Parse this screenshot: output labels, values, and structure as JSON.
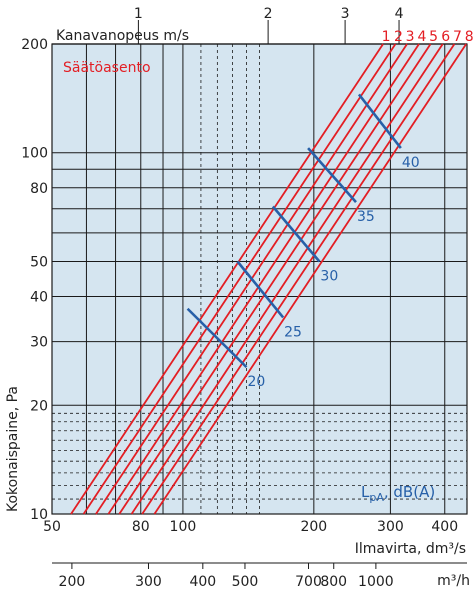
{
  "chart_data": {
    "type": "line",
    "xscale": "log",
    "yscale": "log",
    "xlim": [
      50,
      450
    ],
    "ylim": [
      10,
      200
    ],
    "xlabel": "Ilmavirta, dm³/s",
    "ylabel": "Kokonaispaine, Pa",
    "top_axis_label": "Kanavanopeus m/s",
    "bottom_axis_unit": "m³/h",
    "legend_title": "Säätöasento",
    "noise_label": "L",
    "noise_label_sub": "pA",
    "noise_label_rest": ", dB(A)",
    "x_ticks": [
      50,
      80,
      100,
      200,
      300,
      400
    ],
    "y_ticks": [
      10,
      20,
      30,
      40,
      50,
      80,
      100,
      200
    ],
    "top_ticks": [
      {
        "label": "1",
        "flow": 79
      },
      {
        "label": "2",
        "flow": 157
      },
      {
        "label": "3",
        "flow": 236
      },
      {
        "label": "4",
        "flow": 314
      }
    ],
    "bottom_ticks": [
      {
        "label": "200",
        "m3h": 200
      },
      {
        "label": "300",
        "m3h": 300
      },
      {
        "label": "400",
        "m3h": 400
      },
      {
        "label": "500",
        "m3h": 500
      },
      {
        "label": "700",
        "m3h": 700
      },
      {
        "label": "800",
        "m3h": 800
      },
      {
        "label": "1000",
        "m3h": 1000
      }
    ],
    "series": [
      {
        "name": "1",
        "points": [
          [
            55.3,
            10
          ],
          [
            288.6,
            200
          ]
        ]
      },
      {
        "name": "2",
        "points": [
          [
            59.1,
            10
          ],
          [
            308.1,
            200
          ]
        ]
      },
      {
        "name": "3",
        "points": [
          [
            63.1,
            10
          ],
          [
            327.6,
            200
          ]
        ]
      },
      {
        "name": "4",
        "points": [
          [
            67.4,
            10
          ],
          [
            349.0,
            200
          ]
        ]
      },
      {
        "name": "5",
        "points": [
          [
            71.4,
            10
          ],
          [
            371.0,
            200
          ]
        ]
      },
      {
        "name": "6",
        "points": [
          [
            76.2,
            10
          ],
          [
            395.7,
            200
          ]
        ]
      },
      {
        "name": "7",
        "points": [
          [
            80.6,
            10
          ],
          [
            421.0,
            200
          ]
        ]
      },
      {
        "name": "8",
        "points": [
          [
            86.0,
            10
          ],
          [
            448.0,
            200
          ]
        ]
      }
    ],
    "noise_levels": [
      {
        "label": "20",
        "from": [
          102.5,
          37
        ],
        "to": [
          140.0,
          25.5
        ]
      },
      {
        "label": "25",
        "from": [
          133.5,
          50
        ],
        "to": [
          170.0,
          35
        ]
      },
      {
        "label": "30",
        "from": [
          161.0,
          71
        ],
        "to": [
          206.0,
          50
        ]
      },
      {
        "label": "35",
        "from": [
          194.0,
          103
        ],
        "to": [
          250.0,
          73
        ]
      },
      {
        "label": "40",
        "from": [
          254.0,
          145
        ],
        "to": [
          317.0,
          103
        ]
      }
    ],
    "colors": {
      "series": "#e31e24",
      "noise": "#2760a8",
      "plot_bg": "#d5e5f0",
      "grid": "#1a1a1a"
    }
  }
}
